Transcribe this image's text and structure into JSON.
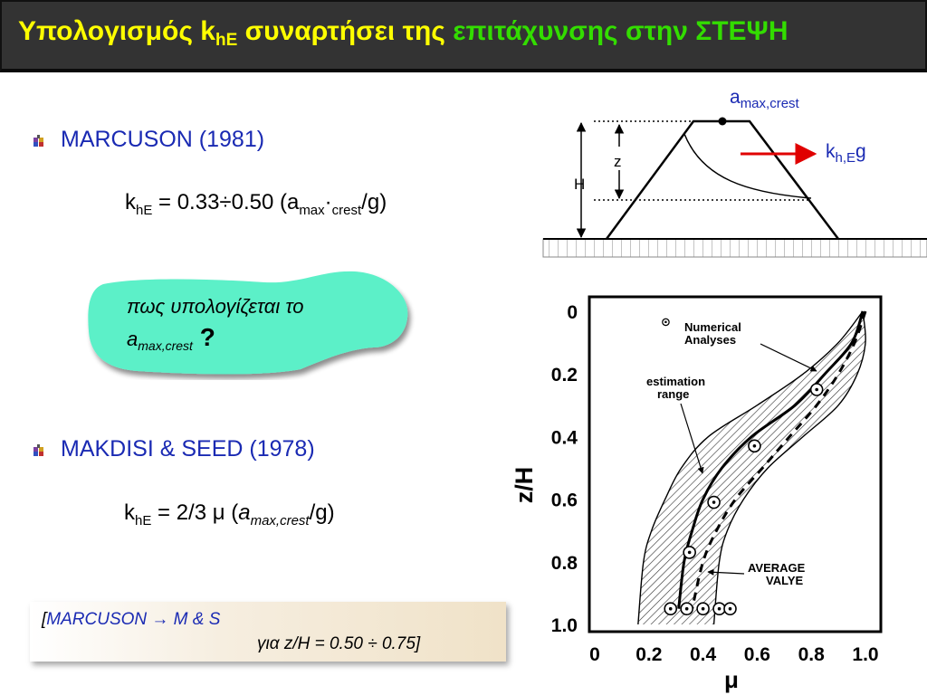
{
  "header": {
    "title_part1": "Υπολογισμός k",
    "title_sub": "hE",
    "title_part2": " συναρτήσει της ",
    "title_part3": "επιτάχυνσης στην ΣΤΕΨΗ",
    "accent_yellow": "#ffff00",
    "accent_green": "#33dd00"
  },
  "section1": {
    "heading": "MARCUSON (1981)",
    "formula_k": "k",
    "formula_k_sub": "hE",
    "formula_mid": " = 0.33÷0.50 (a",
    "formula_a_sub": "max",
    "formula_dot": "·",
    "formula_crest": "crest",
    "formula_end": "/g)"
  },
  "cloud": {
    "line1": "πως υπολογίζεται το",
    "line2_a": "a",
    "line2_sub": "max,crest",
    "line2_q": " ?",
    "fill": "#5cf0c8"
  },
  "section2": {
    "heading": "MAKDISI & SEED (1978)",
    "formula_k": "k",
    "formula_k_sub": "hE",
    "formula_mid": " = 2/3 μ (",
    "formula_a": "a",
    "formula_a_sub": "max,crest",
    "formula_end": "/g)"
  },
  "note": {
    "open": "[",
    "line1_rest": "MARCUSON  → M & S",
    "line2": "για z/H = 0.50 ÷ 0.75]"
  },
  "diagram": {
    "amax_label": "a",
    "amax_sub": "max,crest",
    "kh_label": "k",
    "kh_sub": "h,E",
    "kh_g": "g",
    "z_label": "z",
    "H_label": "H"
  },
  "chart_data": {
    "type": "line",
    "xlabel": "μ",
    "ylabel": "z/H",
    "xlim": [
      0,
      1.0
    ],
    "ylim": [
      0,
      1.0
    ],
    "y_inverted": true,
    "x_ticks": [
      "0",
      "0.2",
      "0.4",
      "0.6",
      "0.8",
      "1.0"
    ],
    "y_ticks": [
      "0",
      "0.2",
      "0.4",
      "0.6",
      "0.8",
      "1.0"
    ],
    "annotations": [
      "Numerical Analyses",
      "estimation range",
      "AVERAGE VALYE"
    ],
    "series": [
      {
        "name": "AVERAGE VALYE",
        "style": "solid",
        "x": [
          0.99,
          0.95,
          0.85,
          0.74,
          0.58,
          0.47,
          0.4,
          0.36,
          0.33,
          0.31
        ],
        "y": [
          0.0,
          0.1,
          0.2,
          0.3,
          0.4,
          0.5,
          0.6,
          0.7,
          0.8,
          0.95
        ]
      },
      {
        "style": "dashed",
        "x": [
          1.0,
          0.96,
          0.9,
          0.82,
          0.72,
          0.62,
          0.52,
          0.45,
          0.4,
          0.36
        ],
        "y": [
          0.0,
          0.1,
          0.2,
          0.3,
          0.4,
          0.5,
          0.6,
          0.7,
          0.8,
          0.95
        ]
      },
      {
        "name": "estimation range (upper bound)",
        "style": "thin",
        "x": [
          0.99,
          1.0,
          0.97,
          0.9,
          0.77,
          0.64,
          0.55,
          0.49,
          0.46,
          0.44
        ],
        "y": [
          0.0,
          0.1,
          0.2,
          0.3,
          0.4,
          0.5,
          0.6,
          0.7,
          0.8,
          1.0
        ]
      },
      {
        "name": "estimation range (lower bound)",
        "style": "thin",
        "x": [
          0.99,
          0.9,
          0.77,
          0.6,
          0.42,
          0.32,
          0.26,
          0.21,
          0.18,
          0.16
        ],
        "y": [
          0.0,
          0.1,
          0.2,
          0.3,
          0.4,
          0.5,
          0.6,
          0.7,
          0.8,
          1.0
        ]
      },
      {
        "name": "Numerical Analyses",
        "style": "points",
        "x": [
          0.82,
          0.59,
          0.44,
          0.35,
          0.28,
          0.34,
          0.4,
          0.46,
          0.5
        ],
        "y": [
          0.25,
          0.43,
          0.61,
          0.77,
          0.95,
          0.95,
          0.95,
          0.95,
          0.95
        ]
      }
    ]
  }
}
